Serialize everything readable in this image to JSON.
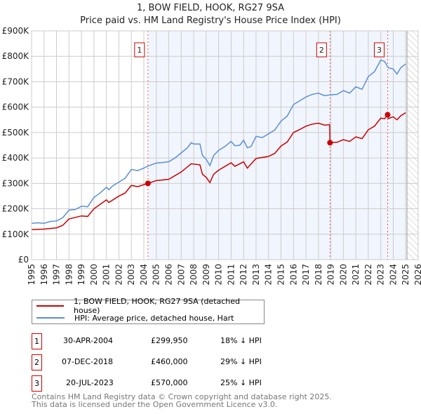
{
  "chart_data": {
    "type": "line",
    "title": "1, BOW FIELD, HOOK, RG27 9SA",
    "subtitle": "Price paid vs. HM Land Registry's House Price Index (HPI)",
    "xlim": [
      1995,
      2026
    ],
    "ylim": [
      0,
      900000
    ],
    "yticks": [
      "£0",
      "£100K",
      "£200K",
      "£300K",
      "£400K",
      "£500K",
      "£600K",
      "£700K",
      "£800K",
      "£900K"
    ],
    "xticks": [
      "1995",
      "1996",
      "1997",
      "1998",
      "1999",
      "2000",
      "2001",
      "2002",
      "2003",
      "2004",
      "2005",
      "2006",
      "2007",
      "2008",
      "2009",
      "2010",
      "2011",
      "2012",
      "2013",
      "2014",
      "2015",
      "2016",
      "2017",
      "2018",
      "2019",
      "2020",
      "2021",
      "2022",
      "2023",
      "2024",
      "2025",
      "2026"
    ],
    "grid": true,
    "series": [
      {
        "name": "1, BOW FIELD, HOOK, RG27 9SA (detached house)",
        "color": "#cc0000",
        "x": [
          1995,
          1996,
          1997,
          1997.5,
          1998,
          1999,
          1999.5,
          2000,
          2001,
          2001.2,
          2002,
          2002.5,
          2003,
          2003.5,
          2004,
          2004.33,
          2005,
          2006,
          2007,
          2007.8,
          2008.5,
          2008.7,
          2009,
          2009.3,
          2009.6,
          2010,
          2011,
          2011.3,
          2012,
          2012.3,
          2013,
          2014,
          2014.5,
          2015,
          2015.5,
          2016,
          2016.5,
          2017,
          2017.5,
          2018,
          2018.5,
          2018.9,
          2018.93,
          2019.5,
          2020,
          2020.5,
          2021,
          2021.5,
          2022,
          2022.5,
          2023,
          2023.3,
          2023.55,
          2023.6,
          2024,
          2024.3,
          2024.6,
          2025
        ],
        "y": [
          118000,
          120000,
          125000,
          135000,
          160000,
          172000,
          170000,
          200000,
          235000,
          225000,
          250000,
          262000,
          292000,
          287000,
          295000,
          299950,
          311000,
          316000,
          345000,
          377000,
          373000,
          336000,
          324000,
          303000,
          336000,
          352000,
          381000,
          367000,
          385000,
          360000,
          398000,
          406000,
          418000,
          447000,
          463000,
          500000,
          512000,
          525000,
          533000,
          537000,
          529000,
          531000,
          460000,
          462000,
          472000,
          465000,
          483000,
          476000,
          511000,
          525000,
          557000,
          554000,
          570000,
          555000,
          562000,
          550000,
          566000,
          578000
        ]
      },
      {
        "name": "HPI: Average price, detached house, Hart",
        "color": "#5b8fd4",
        "x": [
          1995,
          1995.5,
          1996,
          1996.5,
          1997,
          1997.5,
          1998,
          1998.5,
          1999,
          1999.5,
          2000,
          2000.5,
          2001,
          2001.2,
          2001.5,
          2002,
          2002.5,
          2003,
          2003.5,
          2004,
          2004.33,
          2005,
          2005.5,
          2006,
          2006.5,
          2007,
          2007.5,
          2007.8,
          2008,
          2008.5,
          2008.7,
          2009,
          2009.3,
          2009.6,
          2010,
          2010.5,
          2011,
          2011.3,
          2011.7,
          2012,
          2012.3,
          2012.6,
          2013,
          2013.5,
          2014,
          2014.5,
          2015,
          2015.5,
          2016,
          2016.5,
          2017,
          2017.5,
          2018,
          2018.5,
          2018.93,
          2019.5,
          2020,
          2020.5,
          2021,
          2021.5,
          2022,
          2022.5,
          2023,
          2023.3,
          2023.6,
          2024,
          2024.3,
          2024.6,
          2025
        ],
        "y": [
          143000,
          145000,
          143000,
          150000,
          152000,
          165000,
          195000,
          197000,
          210000,
          208000,
          245000,
          262000,
          285000,
          275000,
          290000,
          305000,
          320000,
          355000,
          350000,
          360000,
          368000,
          380000,
          382000,
          385000,
          400000,
          420000,
          440000,
          460000,
          455000,
          455000,
          410000,
          395000,
          370000,
          410000,
          430000,
          445000,
          465000,
          448000,
          450000,
          470000,
          440000,
          445000,
          485000,
          480000,
          495000,
          510000,
          545000,
          565000,
          610000,
          625000,
          640000,
          650000,
          655000,
          645000,
          648000,
          650000,
          665000,
          655000,
          680000,
          670000,
          720000,
          740000,
          785000,
          780000,
          755000,
          750000,
          730000,
          755000,
          770000
        ]
      }
    ],
    "annotations": [
      {
        "label": "1",
        "x": 2004.33,
        "y": 299950
      },
      {
        "label": "2",
        "x": 2018.93,
        "y": 460000
      },
      {
        "label": "3",
        "x": 2023.55,
        "y": 570000
      }
    ],
    "shaded_range": [
      2004.33,
      2025.0
    ],
    "hatched_from": 2025.1,
    "legend_placement": "below"
  },
  "transactions": [
    {
      "num": "1",
      "date": "30-APR-2004",
      "price": "£299,950",
      "hpi": "18% ↓ HPI"
    },
    {
      "num": "2",
      "date": "07-DEC-2018",
      "price": "£460,000",
      "hpi": "29% ↓ HPI"
    },
    {
      "num": "3",
      "date": "20-JUL-2023",
      "price": "£570,000",
      "hpi": "25% ↓ HPI"
    }
  ],
  "footer": {
    "line1": "Contains HM Land Registry data © Crown copyright and database right 2025.",
    "line2": "This data is licensed under the Open Government Licence v3.0."
  }
}
